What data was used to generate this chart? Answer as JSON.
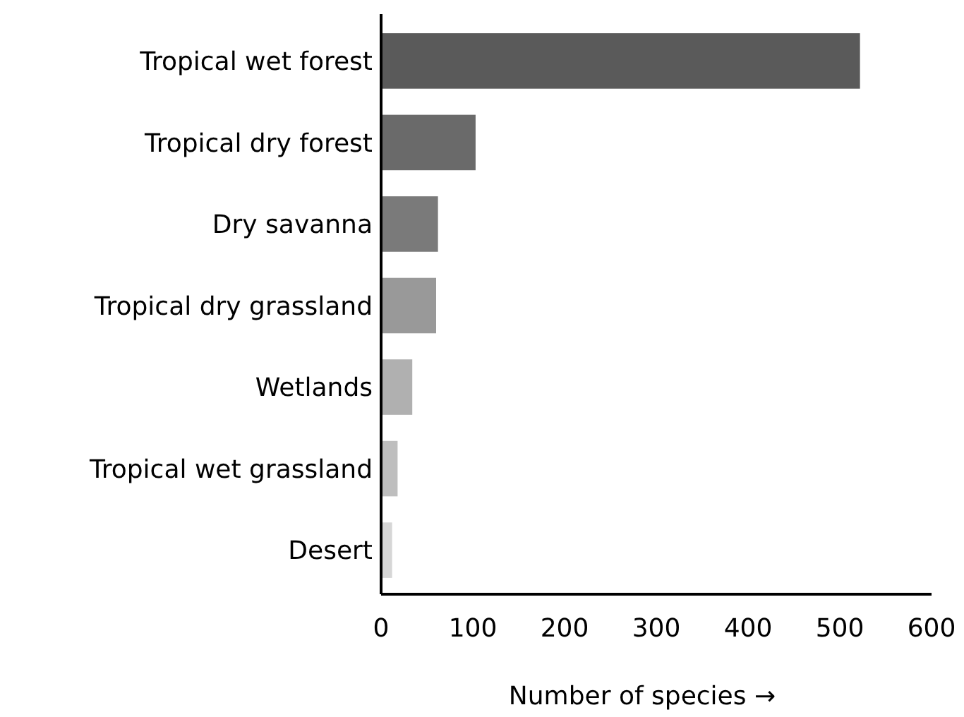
{
  "chart_data": {
    "type": "bar",
    "orientation": "horizontal",
    "xlabel": "Number of species →",
    "categories": [
      "Tropical wet forest",
      "Tropical dry forest",
      "Dry savanna",
      "Tropical dry grassland",
      "Wetlands",
      "Tropical wet grassland",
      "Desert"
    ],
    "values": [
      522,
      103,
      62,
      60,
      34,
      18,
      12
    ],
    "colors": [
      "#5a5a5a",
      "#6a6a6a",
      "#7a7a7a",
      "#999999",
      "#b0b0b0",
      "#bebebe",
      "#d6d6d6"
    ],
    "xlim": [
      0,
      600
    ],
    "xticks": [
      0,
      100,
      200,
      300,
      400,
      500,
      600
    ],
    "grid": false
  }
}
